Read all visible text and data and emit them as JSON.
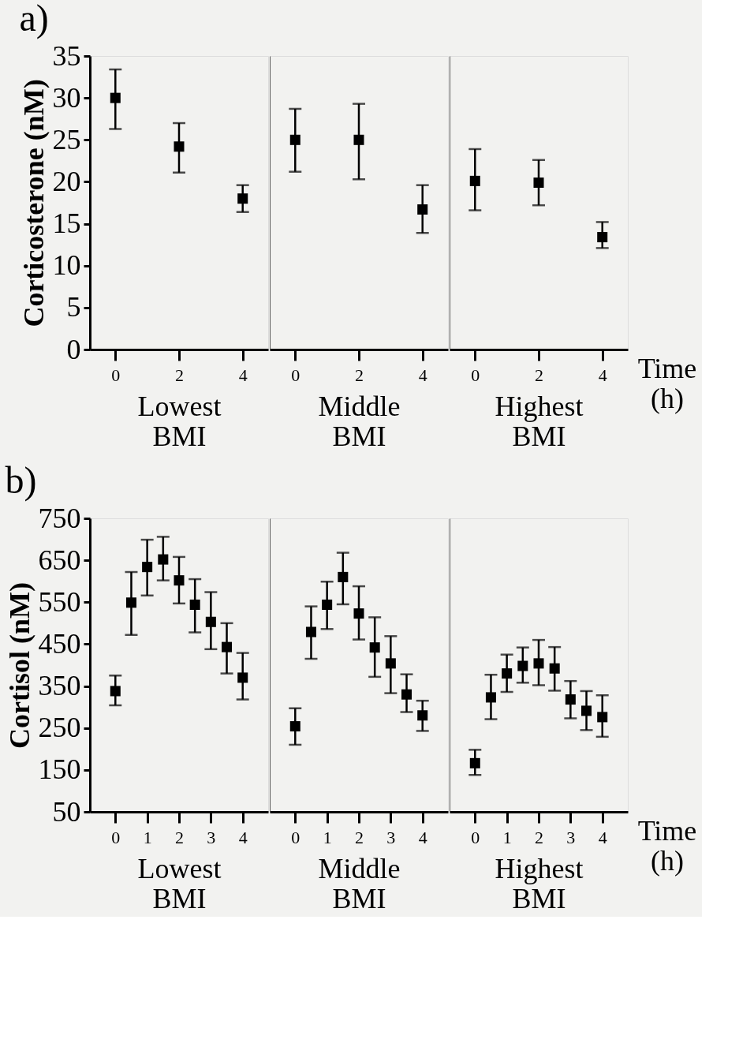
{
  "chart_data": [
    {
      "type": "scatter",
      "title": "a)",
      "ylabel": "Corticosterone (nM)",
      "xlabel": "Lowest BMI",
      "marker": "square",
      "color": "#000000",
      "x": [
        0,
        2,
        4
      ],
      "values": [
        30.0,
        24.2,
        18.0
      ],
      "errors": [
        [
          26.3,
          33.4
        ],
        [
          21.1,
          27.0
        ],
        [
          16.4,
          19.6
        ]
      ],
      "xlim": [
        -0.8,
        4.8
      ],
      "xticks": [
        0,
        2,
        4
      ],
      "ylim": [
        0,
        35
      ],
      "yticks": [
        0,
        5,
        10,
        15,
        20,
        25,
        30,
        35
      ]
    },
    {
      "type": "scatter",
      "xlabel": "Middle BMI",
      "marker": "square",
      "color": "#000000",
      "tick_labels": "x",
      "x": [
        0,
        2,
        4
      ],
      "values": [
        25.0,
        25.0,
        16.7
      ],
      "errors": [
        [
          21.2,
          28.7
        ],
        [
          20.3,
          29.3
        ],
        [
          13.9,
          19.6
        ]
      ],
      "xlim": [
        -0.8,
        4.8
      ],
      "xticks": [
        0,
        2,
        4
      ],
      "ylim": [
        0,
        35
      ],
      "yticks": [
        0,
        5,
        10,
        15,
        20,
        25,
        30,
        35
      ]
    },
    {
      "type": "scatter",
      "xlabel": "Highest BMI",
      "marker": "square",
      "color": "#000000",
      "tick_labels": "x",
      "annotations": [
        "Time (h)"
      ],
      "x": [
        0,
        2,
        4
      ],
      "values": [
        20.1,
        19.9,
        13.4
      ],
      "errors": [
        [
          16.6,
          23.9
        ],
        [
          17.2,
          22.6
        ],
        [
          12.1,
          15.2
        ]
      ],
      "xlim": [
        -0.8,
        4.8
      ],
      "xticks": [
        0,
        2,
        4
      ],
      "ylim": [
        0,
        35
      ],
      "yticks": [
        0,
        5,
        10,
        15,
        20,
        25,
        30,
        35
      ]
    },
    {
      "type": "scatter",
      "title": "b)",
      "ylabel": "Cortisol (nM)",
      "xlabel": "Lowest BMI",
      "marker": "square",
      "color": "#000000",
      "x": [
        0,
        0.5,
        1,
        1.5,
        2,
        2.5,
        3,
        3.5,
        4
      ],
      "values": [
        338,
        549,
        634,
        652,
        602,
        544,
        503,
        443,
        370
      ],
      "errors": [
        [
          304,
          375
        ],
        [
          472,
          622
        ],
        [
          566,
          699
        ],
        [
          602,
          706
        ],
        [
          547,
          658
        ],
        [
          478,
          605
        ],
        [
          438,
          574
        ],
        [
          380,
          500
        ],
        [
          318,
          429
        ]
      ],
      "xlim": [
        -0.8,
        4.8
      ],
      "xticks": [
        0,
        1,
        2,
        3,
        4
      ],
      "ylim": [
        50,
        750
      ],
      "yticks": [
        50,
        150,
        250,
        350,
        450,
        550,
        650,
        750
      ]
    },
    {
      "type": "scatter",
      "xlabel": "Middle BMI",
      "marker": "square",
      "color": "#000000",
      "tick_labels": "x",
      "x": [
        0,
        0.5,
        1,
        1.5,
        2,
        2.5,
        3,
        3.5,
        4
      ],
      "values": [
        254,
        479,
        544,
        610,
        523,
        442,
        404,
        330,
        280
      ],
      "errors": [
        [
          210,
          297
        ],
        [
          415,
          540
        ],
        [
          486,
          599
        ],
        [
          545,
          668
        ],
        [
          461,
          588
        ],
        [
          372,
          514
        ],
        [
          333,
          469
        ],
        [
          288,
          378
        ],
        [
          243,
          315
        ]
      ],
      "xlim": [
        -0.8,
        4.8
      ],
      "xticks": [
        0,
        1,
        2,
        3,
        4
      ],
      "ylim": [
        50,
        750
      ],
      "yticks": [
        50,
        150,
        250,
        350,
        450,
        550,
        650,
        750
      ]
    },
    {
      "type": "scatter",
      "xlabel": "Highest BMI",
      "marker": "square",
      "color": "#000000",
      "tick_labels": "x",
      "annotations": [
        "Time (h)"
      ],
      "x": [
        0,
        0.5,
        1,
        1.5,
        2,
        2.5,
        3,
        3.5,
        4
      ],
      "values": [
        166,
        323,
        380,
        398,
        404,
        392,
        318,
        291,
        276
      ],
      "errors": [
        [
          138,
          198
        ],
        [
          271,
          377
        ],
        [
          336,
          425
        ],
        [
          358,
          442
        ],
        [
          352,
          460
        ],
        [
          339,
          443
        ],
        [
          273,
          362
        ],
        [
          245,
          338
        ],
        [
          229,
          328
        ]
      ],
      "xlim": [
        -0.8,
        4.8
      ],
      "xticks": [
        0,
        1,
        2,
        3,
        4
      ],
      "ylim": [
        50,
        750
      ],
      "yticks": [
        50,
        150,
        250,
        350,
        450,
        550,
        650,
        750
      ]
    }
  ]
}
